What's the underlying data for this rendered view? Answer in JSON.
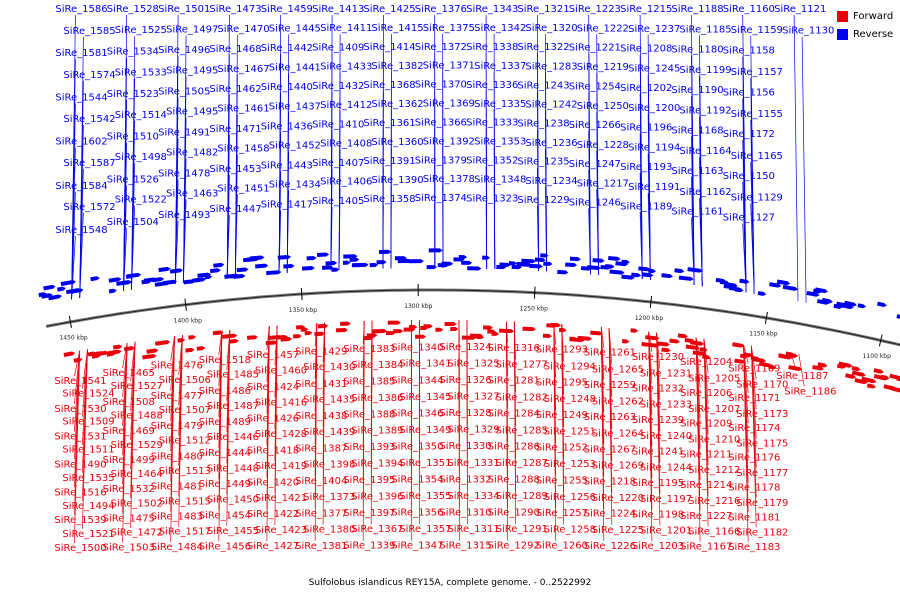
{
  "legend": {
    "forward_label": "Forward",
    "reverse_label": "Reverse",
    "forward_color": "#e8000b",
    "reverse_color": "#0000ee"
  },
  "caption": "Sulfolobus islandicus REY15A, complete genome. - 0..2522992",
  "backbone_color": "#7a7a7a",
  "scale_ticks": [
    "1450 kbp",
    "1400 kbp",
    "1350 kbp",
    "1300 kbp",
    "1250 kbp",
    "1200 kbp",
    "1150 kbp",
    "1100 kbp"
  ],
  "reverse_genes": [
    "SiRe_1586",
    "SiRe_1585",
    "SiRe_1581",
    "SiRe_1574",
    "SiRe_1544",
    "SiRe_1542",
    "SiRe_1602",
    "SiRe_1587",
    "SiRe_1584",
    "SiRe_1572",
    "SiRe_1548",
    "SiRe_1528",
    "SiRe_1525",
    "SiRe_1534",
    "SiRe_1533",
    "SiRe_1523",
    "SiRe_1514",
    "SiRe_1510",
    "SiRe_1498",
    "SiRe_1526",
    "SiRe_1522",
    "SiRe_1504",
    "SiRe_1501",
    "SiRe_1497",
    "SiRe_1496",
    "SiRe_1495",
    "SiRe_1505",
    "SiRe_1495",
    "SiRe_1491",
    "SiRe_1482",
    "SiRe_1478",
    "SiRe_1463",
    "SiRe_1493",
    "SiRe_1473",
    "SiRe_1470",
    "SiRe_1468",
    "SiRe_1467",
    "SiRe_1462",
    "SiRe_1461",
    "SiRe_1471",
    "SiRe_1458",
    "SiRe_1453",
    "SiRe_1451",
    "SiRe_1447",
    "SiRe_1459",
    "SiRe_1445",
    "SiRe_1442",
    "SiRe_1441",
    "SiRe_1440",
    "SiRe_1437",
    "SiRe_1436",
    "SiRe_1452",
    "SiRe_1443",
    "SiRe_1434",
    "SiRe_1417",
    "SiRe_1413",
    "SiRe_1411",
    "SiRe_1409",
    "SiRe_1433",
    "SiRe_1432",
    "SiRe_1412",
    "SiRe_1410",
    "SiRe_1408",
    "SiRe_1407",
    "SiRe_1406",
    "SiRe_1405",
    "SiRe_1425",
    "SiRe_1415",
    "SiRe_1414",
    "SiRe_1382",
    "SiRe_1368",
    "SiRe_1362",
    "SiRe_1361",
    "SiRe_1360",
    "SiRe_1391",
    "SiRe_1390",
    "SiRe_1358",
    "SiRe_1376",
    "SiRe_1375",
    "SiRe_1372",
    "SiRe_1371",
    "SiRe_1370",
    "SiRe_1369",
    "SiRe_1366",
    "SiRe_1392",
    "SiRe_1379",
    "SiRe_1378",
    "SiRe_1374",
    "SiRe_1343",
    "SiRe_1342",
    "SiRe_1338",
    "SiRe_1337",
    "SiRe_1336",
    "SiRe_1335",
    "SiRe_1333",
    "SiRe_1353",
    "SiRe_1352",
    "SiRe_1348",
    "SiRe_1323",
    "SiRe_1321",
    "SiRe_1320",
    "SiRe_1322",
    "SiRe_1283",
    "SiRe_1243",
    "SiRe_1242",
    "SiRe_1238",
    "SiRe_1236",
    "SiRe_1235",
    "SiRe_1234",
    "SiRe_1229",
    "SiRe_1223",
    "SiRe_1222",
    "SiRe_1221",
    "SiRe_1219",
    "SiRe_1254",
    "SiRe_1250",
    "SiRe_1266",
    "SiRe_1228",
    "SiRe_1247",
    "SiRe_1217",
    "SiRe_1246",
    "SiRe_1215",
    "SiRe_1237",
    "SiRe_1208",
    "SiRe_1245",
    "SiRe_1202",
    "SiRe_1200",
    "SiRe_1196",
    "SiRe_1194",
    "SiRe_1193",
    "SiRe_1191",
    "SiRe_1189",
    "SiRe_1188",
    "SiRe_1185",
    "SiRe_1180",
    "SiRe_1199",
    "SiRe_1190",
    "SiRe_1192",
    "SiRe_1168",
    "SiRe_1164",
    "SiRe_1163",
    "SiRe_1162",
    "SiRe_1161",
    "SiRe_1160",
    "SiRe_1159",
    "SiRe_1158",
    "SiRe_1157",
    "SiRe_1156",
    "SiRe_1155",
    "SiRe_1172",
    "SiRe_1165",
    "SiRe_1150",
    "SiRe_1129",
    "SiRe_1127",
    "SiRe_1121",
    "SiRe_1130"
  ],
  "forward_genes": [
    "SiRe_1541",
    "SiRe_1524",
    "SiRe_1530",
    "SiRe_1509",
    "SiRe_1531",
    "SiRe_1511",
    "SiRe_1490",
    "SiRe_1535",
    "SiRe_1516",
    "SiRe_1494",
    "SiRe_1539",
    "SiRe_1521",
    "SiRe_1500",
    "SiRe_1465",
    "SiRe_1527",
    "SiRe_1508",
    "SiRe_1488",
    "SiRe_1469",
    "SiRe_1529",
    "SiRe_1499",
    "SiRe_1464",
    "SiRe_1532",
    "SiRe_1502",
    "SiRe_1475",
    "SiRe_1472",
    "SiRe_1503",
    "SiRe_1476",
    "SiRe_1506",
    "SiRe_1477",
    "SiRe_1507",
    "SiRe_1479",
    "SiRe_1512",
    "SiRe_1480",
    "SiRe_1513",
    "SiRe_1481",
    "SiRe_1515",
    "SiRe_1483",
    "SiRe_1517",
    "SiRe_1484",
    "SiRe_1518",
    "SiRe_1485",
    "SiRe_1486",
    "SiRe_1487",
    "SiRe_1489",
    "SiRe_1446",
    "SiRe_1444",
    "SiRe_1448",
    "SiRe_1449",
    "SiRe_1450",
    "SiRe_1454",
    "SiRe_1455",
    "SiRe_1456",
    "SiRe_1457",
    "SiRe_1460",
    "SiRe_1424",
    "SiRe_1416",
    "SiRe_1426",
    "SiRe_1428",
    "SiRe_1418",
    "SiRe_1419",
    "SiRe_1420",
    "SiRe_1421",
    "SiRe_1422",
    "SiRe_1423",
    "SiRe_1427",
    "SiRe_1429",
    "SiRe_1430",
    "SiRe_1431",
    "SiRe_1435",
    "SiRe_1438",
    "SiRe_1439",
    "SiRe_1387",
    "SiRe_1398",
    "SiRe_1404",
    "SiRe_1373",
    "SiRe_1377",
    "SiRe_1380",
    "SiRe_1381",
    "SiRe_1383",
    "SiRe_1384",
    "SiRe_1385",
    "SiRe_1386",
    "SiRe_1388",
    "SiRe_1389",
    "SiRe_1393",
    "SiRe_1394",
    "SiRe_1395",
    "SiRe_1396",
    "SiRe_1397",
    "SiRe_1367",
    "SiRe_1339",
    "SiRe_1340",
    "SiRe_1341",
    "SiRe_1344",
    "SiRe_1345",
    "SiRe_1346",
    "SiRe_1349",
    "SiRe_1350",
    "SiRe_1351",
    "SiRe_1354",
    "SiRe_1355",
    "SiRe_1356",
    "SiRe_1357",
    "SiRe_1347",
    "SiRe_1324",
    "SiRe_1325",
    "SiRe_1326",
    "SiRe_1327",
    "SiRe_1328",
    "SiRe_1329",
    "SiRe_1330",
    "SiRe_1331",
    "SiRe_1332",
    "SiRe_1334",
    "SiRe_1310",
    "SiRe_1311",
    "SiRe_1315",
    "SiRe_1316",
    "SiRe_1277",
    "SiRe_1281",
    "SiRe_1282",
    "SiRe_1284",
    "SiRe_1285",
    "SiRe_1286",
    "SiRe_1287",
    "SiRe_1288",
    "SiRe_1289",
    "SiRe_1290",
    "SiRe_1291",
    "SiRe_1292",
    "SiRe_1293",
    "SiRe_1294",
    "SiRe_1295",
    "SiRe_1248",
    "SiRe_1249",
    "SiRe_1251",
    "SiRe_1252",
    "SiRe_1253",
    "SiRe_1255",
    "SiRe_1256",
    "SiRe_1257",
    "SiRe_1258",
    "SiRe_1260",
    "SiRe_1261",
    "SiRe_1265",
    "SiRe_1259",
    "SiRe_1262",
    "SiRe_1263",
    "SiRe_1264",
    "SiRe_1267",
    "SiRe_1269",
    "SiRe_1218",
    "SiRe_1220",
    "SiRe_1224",
    "SiRe_1225",
    "SiRe_1226",
    "SiRe_1230",
    "SiRe_1231",
    "SiRe_1232",
    "SiRe_1233",
    "SiRe_1239",
    "SiRe_1240",
    "SiRe_1241",
    "SiRe_1244",
    "SiRe_1195",
    "SiRe_1197",
    "SiRe_1198",
    "SiRe_1201",
    "SiRe_1203",
    "SiRe_1204",
    "SiRe_1205",
    "SiRe_1206",
    "SiRe_1207",
    "SiRe_1209",
    "SiRe_1210",
    "SiRe_1211",
    "SiRe_1212",
    "SiRe_1214",
    "SiRe_1216",
    "SiRe_1227",
    "SiRe_1166",
    "SiRe_1167",
    "SiRe_1169",
    "SiRe_1170",
    "SiRe_1171",
    "SiRe_1173",
    "SiRe_1174",
    "SiRe_1175",
    "SiRe_1176",
    "SiRe_1177",
    "SiRe_1178",
    "SiRe_1179",
    "SiRe_1181",
    "SiRe_1182",
    "SiRe_1183",
    "SiRe_1187",
    "SiRe_1186"
  ]
}
